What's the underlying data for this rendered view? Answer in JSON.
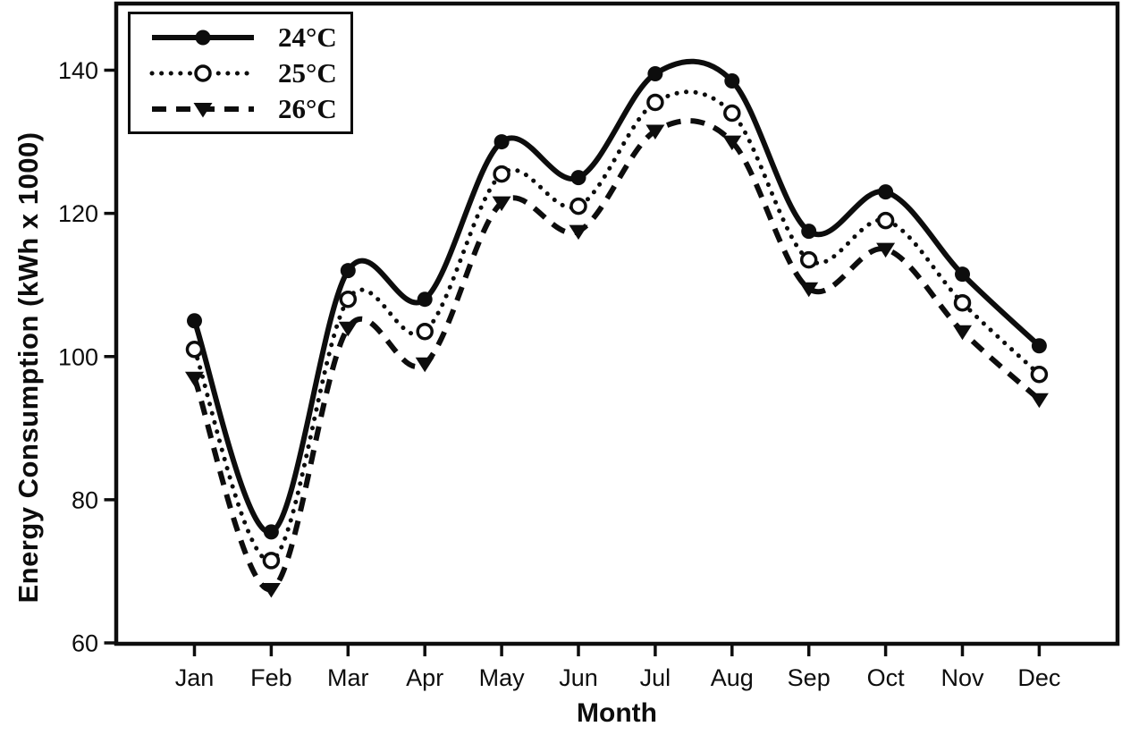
{
  "page": {
    "background": "#ffffff",
    "ink_color": "#0d0d0d"
  },
  "chart_data": {
    "type": "line",
    "title": "",
    "xlabel": "Month",
    "ylabel": "Energy Consumption (kWh x 1000)",
    "categories": [
      "Jan",
      "Feb",
      "Mar",
      "Apr",
      "May",
      "Jun",
      "Jul",
      "Aug",
      "Sep",
      "Oct",
      "Nov",
      "Dec"
    ],
    "y_ticks": [
      60,
      80,
      100,
      120,
      140
    ],
    "ylim": [
      60,
      149.4
    ],
    "grid": false,
    "legend_position": "top-left",
    "curve": "smooth-spline",
    "series": [
      {
        "name": "24°C",
        "line": "solid",
        "marker": "filled-circle",
        "values": [
          105,
          75.5,
          112,
          108,
          130,
          125,
          139.5,
          138.5,
          117.5,
          123,
          111.5,
          101.5
        ]
      },
      {
        "name": "25°C",
        "line": "dotted",
        "marker": "open-circle",
        "values": [
          101,
          71.5,
          108,
          103.5,
          125.5,
          121,
          135.5,
          134,
          113.5,
          119,
          107.5,
          97.5
        ]
      },
      {
        "name": "26°C",
        "line": "dashed",
        "marker": "filled-triangle-down",
        "values": [
          97,
          67.5,
          104,
          99,
          121.5,
          117.5,
          131.5,
          130,
          109.5,
          115,
          103.5,
          94
        ]
      }
    ]
  }
}
